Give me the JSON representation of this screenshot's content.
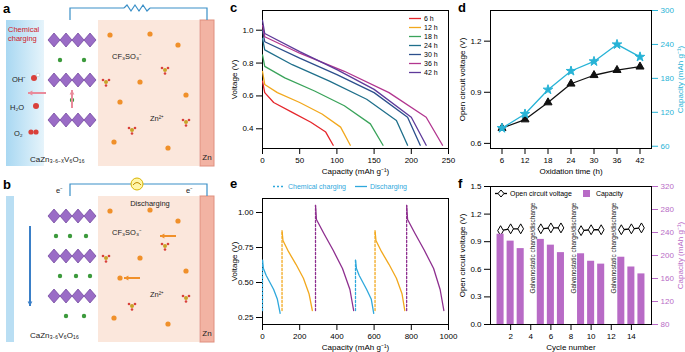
{
  "diagrams": [
    {
      "panel": "a",
      "labels": {
        "mode": "Chemical charging",
        "hydroxide": "OH⁻",
        "water": "H₂O",
        "oxygen": "O₂",
        "anion": "CF₃SO₃⁻",
        "cation": "Zn²⁺",
        "cathode": "CaZn₃.₆₋ₓV₆O₁₆",
        "anode": "Zn"
      }
    },
    {
      "panel": "b",
      "labels": {
        "mode": "Discharging",
        "electron": "e⁻",
        "anion": "CF₃SO₃⁻",
        "cation": "Zn²⁺",
        "cathode": "CaZn₃.₆V₆O₁₆",
        "anode": "Zn"
      }
    }
  ],
  "chart_data": [
    {
      "panel": "c",
      "type": "line",
      "x_label": "Capacity (mAh g⁻¹)",
      "y_label": "Voltage (V)",
      "xlim": [
        0,
        250
      ],
      "xticks": [
        0,
        50,
        100,
        150,
        200,
        250
      ],
      "ylim": [
        0.28,
        1.12
      ],
      "yticks": [
        0.4,
        0.6,
        0.8,
        {
          "value": 1.0,
          "label": "1.0"
        }
      ],
      "legend": "top-right",
      "series": [
        {
          "name": "6 h",
          "color": "#e5262b",
          "x": [
            0,
            3,
            15,
            40,
            65,
            85,
            95
          ],
          "values": [
            0.69,
            0.62,
            0.56,
            0.5,
            0.44,
            0.38,
            0.3
          ]
        },
        {
          "name": "12 h",
          "color": "#f2a81d",
          "x": [
            0,
            3,
            20,
            50,
            80,
            105,
            118
          ],
          "values": [
            0.75,
            0.67,
            0.62,
            0.56,
            0.49,
            0.41,
            0.3
          ]
        },
        {
          "name": "18 h",
          "color": "#3aa35a",
          "x": [
            0,
            3,
            30,
            70,
            110,
            145,
            162
          ],
          "values": [
            0.85,
            0.78,
            0.71,
            0.63,
            0.54,
            0.43,
            0.3
          ]
        },
        {
          "name": "24 h",
          "color": "#1f6f8b",
          "x": [
            0,
            3,
            40,
            90,
            140,
            180,
            195
          ],
          "values": [
            0.95,
            0.88,
            0.79,
            0.69,
            0.58,
            0.45,
            0.3
          ]
        },
        {
          "name": "30 h",
          "color": "#2c4f8c",
          "x": [
            0,
            3,
            50,
            100,
            150,
            195,
            212
          ],
          "values": [
            1.0,
            0.93,
            0.83,
            0.73,
            0.62,
            0.47,
            0.3
          ]
        },
        {
          "name": "36 h",
          "color": "#b2358f",
          "x": [
            0,
            3,
            50,
            110,
            170,
            220,
            242
          ],
          "values": [
            1.03,
            0.96,
            0.86,
            0.75,
            0.62,
            0.47,
            0.3
          ]
        },
        {
          "name": "42 h",
          "color": "#5e3a9a",
          "x": [
            0,
            3,
            50,
            100,
            150,
            200,
            220
          ],
          "values": [
            1.06,
            0.98,
            0.87,
            0.76,
            0.64,
            0.47,
            0.3
          ]
        }
      ]
    },
    {
      "panel": "d",
      "type": "line",
      "x_label": "Oxidation time (h)",
      "y_label": "Open circuit voltage (V)",
      "y2_label": "Capacity (mAh g⁻¹)",
      "x": [
        6,
        12,
        18,
        24,
        30,
        36,
        42
      ],
      "xlim": [
        3,
        45
      ],
      "xticks": [
        6,
        12,
        18,
        24,
        30,
        36,
        42
      ],
      "ylim": [
        0.57,
        1.38
      ],
      "yticks": [
        0.6,
        0.9,
        1.2
      ],
      "y2lim": [
        56,
        300
      ],
      "y2ticks": [
        60,
        120,
        180,
        240,
        300
      ],
      "series": [
        {
          "color": "#111111",
          "marker": "triangle",
          "values": [
            0.69,
            0.74,
            0.84,
            0.95,
            1.0,
            1.03,
            1.05
          ]
        },
        {
          "color": "#27b3d6",
          "marker": "star",
          "axis": "y2",
          "values": [
            92,
            117,
            160,
            193,
            210,
            240,
            218
          ]
        }
      ]
    },
    {
      "panel": "e",
      "type": "line",
      "x_label": "Capacity (mAh g⁻¹)",
      "y_label": "Voltage (V)",
      "xlim": [
        0,
        1000
      ],
      "xticks": [
        0,
        200,
        400,
        600,
        800,
        1000
      ],
      "ylim": [
        0.2,
        1.1
      ],
      "yticks": [
        0.25,
        {
          "value": 0.5,
          "label": "0.50"
        },
        0.75,
        {
          "value": 1.0,
          "label": "1.00"
        }
      ],
      "legend": "top",
      "series": [
        {
          "name": "Chemical charging",
          "line_style": "dotted",
          "color": "#2fa8dc",
          "segments": [
            {
              "color": "#2fa8dc",
              "x": [
                0,
                0
              ],
              "values": [
                0.3,
                0.66
              ]
            },
            {
              "color": "#f2a81d",
              "x": [
                105,
                105
              ],
              "values": [
                0.3,
                0.87
              ]
            },
            {
              "color": "#8e2f8f",
              "x": [
                285,
                285
              ],
              "values": [
                0.3,
                1.05
              ]
            },
            {
              "color": "#2fa8dc",
              "x": [
                500,
                500
              ],
              "values": [
                0.3,
                0.66
              ]
            },
            {
              "color": "#f2a81d",
              "x": [
                605,
                605
              ],
              "values": [
                0.3,
                0.87
              ]
            },
            {
              "color": "#8e2f8f",
              "x": [
                775,
                775
              ],
              "values": [
                0.3,
                1.05
              ]
            }
          ]
        },
        {
          "name": "Discharging",
          "line_style": "solid",
          "color": "#2fa8dc",
          "segments": [
            {
              "color": "#2fa8dc",
              "x": [
                0,
                5,
                20,
                40,
                60,
                80,
                95
              ],
              "values": [
                0.66,
                0.6,
                0.55,
                0.5,
                0.45,
                0.38,
                0.28
              ]
            },
            {
              "color": "#f2a81d",
              "x": [
                105,
                110,
                140,
                180,
                220,
                250,
                268
              ],
              "values": [
                0.87,
                0.8,
                0.72,
                0.63,
                0.53,
                0.42,
                0.3
              ]
            },
            {
              "color": "#8e2f8f",
              "x": [
                285,
                290,
                330,
                380,
                430,
                470,
                490
              ],
              "values": [
                1.05,
                0.95,
                0.85,
                0.73,
                0.6,
                0.45,
                0.3
              ]
            },
            {
              "color": "#2fa8dc",
              "x": [
                500,
                505,
                520,
                540,
                560,
                585,
                598
              ],
              "values": [
                0.66,
                0.6,
                0.55,
                0.5,
                0.45,
                0.38,
                0.28
              ]
            },
            {
              "color": "#f2a81d",
              "x": [
                605,
                610,
                640,
                680,
                720,
                750,
                765
              ],
              "values": [
                0.87,
                0.8,
                0.72,
                0.63,
                0.53,
                0.42,
                0.3
              ]
            },
            {
              "color": "#8e2f8f",
              "x": [
                775,
                780,
                820,
                870,
                920,
                955,
                975
              ],
              "values": [
                1.05,
                0.95,
                0.85,
                0.73,
                0.6,
                0.45,
                0.3
              ]
            }
          ]
        }
      ]
    },
    {
      "panel": "f",
      "type": "bar",
      "x_label": "Cycle number",
      "y_label": "Open circuit voltage (V)",
      "y2_label": "Capacity (mAh g⁻¹)",
      "x": [
        1,
        2,
        3,
        4,
        5,
        6,
        7,
        8,
        9,
        10,
        11,
        12,
        13,
        14,
        15
      ],
      "xlim": [
        0,
        16
      ],
      "xticks": [
        2,
        4,
        6,
        8,
        10,
        12,
        14
      ],
      "ylim": [
        0,
        1.5
      ],
      "yticks": [
        {
          "value": 0,
          "label": "0.0"
        },
        0.3,
        0.6,
        0.9,
        1.2,
        1.5
      ],
      "y2lim": [
        80,
        320
      ],
      "y2ticks": [
        80,
        120,
        160,
        200,
        240,
        280,
        320
      ],
      "legend": "top-left",
      "series": [
        {
          "name": "Open circuit voltage",
          "type": "line",
          "marker": "diamond",
          "color": "#000000",
          "values": [
            1.02,
            1.04,
            1.04,
            null,
            1.04,
            1.05,
            1.05,
            null,
            1.02,
            1.03,
            1.03,
            null,
            1.03,
            1.04,
            1.05
          ]
        },
        {
          "name": "Capacity",
          "type": "bar",
          "axis": "y2",
          "color": "#b86bc6",
          "values": [
            237,
            225,
            212,
            null,
            228,
            218,
            205,
            null,
            203,
            190,
            185,
            null,
            197,
            180,
            168
          ]
        }
      ],
      "annotations": [
        {
          "x": 4,
          "text": "Galvanostatic charge/discharge"
        },
        {
          "x": 8,
          "text": "Galvanostatic charge/discharge"
        },
        {
          "x": 12,
          "text": "Galvanostatic charge/discharge"
        }
      ]
    }
  ]
}
